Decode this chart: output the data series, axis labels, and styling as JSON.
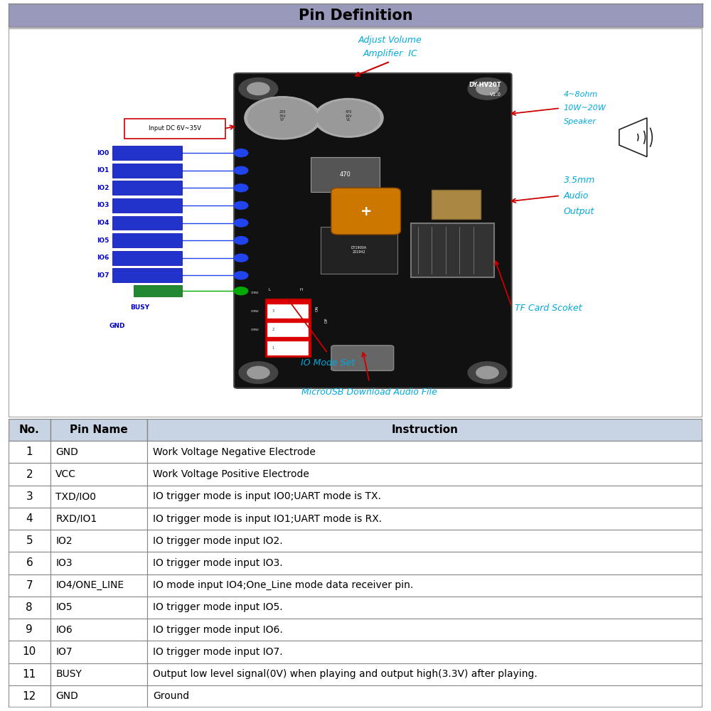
{
  "title": "Pin Definition",
  "title_bg": "#9999bb",
  "title_color": "#000000",
  "cyan_color": "#00aadd",
  "red_color": "#cc0000",
  "rows": [
    {
      "no": "1",
      "pin": "GND",
      "instruction": "Work Voltage Negative Electrode"
    },
    {
      "no": "2",
      "pin": "VCC",
      "instruction": "Work Voltage Positive Electrode"
    },
    {
      "no": "3",
      "pin": "TXD/IO0",
      "instruction": "IO trigger mode is input IO0;UART mode is TX."
    },
    {
      "no": "4",
      "pin": "RXD/IO1",
      "instruction": "IO trigger mode is input IO1;UART mode is RX."
    },
    {
      "no": "5",
      "pin": "IO2",
      "instruction": "IO trigger mode input IO2."
    },
    {
      "no": "6",
      "pin": "IO3",
      "instruction": "IO trigger mode input IO3."
    },
    {
      "no": "7",
      "pin": "IO4/ONE_LINE",
      "instruction": "IO mode input IO4;One_Line mode data receiver pin."
    },
    {
      "no": "8",
      "pin": "IO5",
      "instruction": "IO trigger mode input IO5."
    },
    {
      "no": "9",
      "pin": "IO6",
      "instruction": "IO trigger mode input IO6."
    },
    {
      "no": "10",
      "pin": "IO7",
      "instruction": "IO trigger mode input IO7."
    },
    {
      "no": "11",
      "pin": "BUSY",
      "instruction": "Output low level signal(0V) when playing and output high(3.3V) after playing."
    },
    {
      "no": "12",
      "pin": "GND",
      "instruction": "Ground"
    }
  ],
  "io_labels": [
    "IO0",
    "IO1",
    "IO2",
    "IO3",
    "IO4",
    "IO5",
    "IO6",
    "IO7"
  ],
  "busy_label": "BUSY",
  "gnd_label": "GND",
  "input_dc": "Input DC 6V~35V",
  "adjust_volume_line1": "Adjust Volume",
  "adjust_volume_line2": "Amplifier  IC",
  "speaker_line1": "4~8ohm",
  "speaker_line2": "10W~20W",
  "speaker_line3": "Speaker",
  "audio_line1": "3.5mm",
  "audio_line2": "Audio",
  "audio_line3": "Output",
  "tf_card": "TF Card Scoket",
  "io_mode": "IO Mode Set",
  "microusb": "MicroUSB Download Audio File",
  "board_label1": "DY-HV20T",
  "board_label2": "V1.0"
}
